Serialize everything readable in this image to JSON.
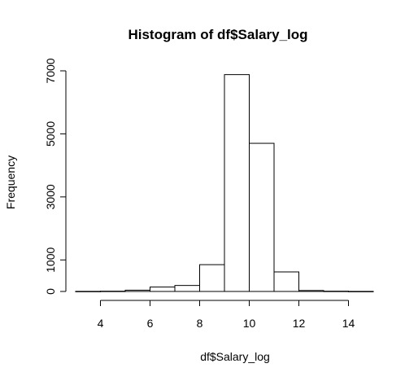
{
  "chart_data": {
    "type": "bar",
    "title": "Histogram of df$Salary_log",
    "xlabel": "df$Salary_log",
    "ylabel": "Frequency",
    "bins": [
      {
        "start": 3,
        "end": 4,
        "count": 3
      },
      {
        "start": 4,
        "end": 5,
        "count": 8
      },
      {
        "start": 5,
        "end": 6,
        "count": 40
      },
      {
        "start": 6,
        "end": 7,
        "count": 140
      },
      {
        "start": 7,
        "end": 8,
        "count": 190
      },
      {
        "start": 8,
        "end": 9,
        "count": 850
      },
      {
        "start": 9,
        "end": 10,
        "count": 6880
      },
      {
        "start": 10,
        "end": 11,
        "count": 4700
      },
      {
        "start": 11,
        "end": 12,
        "count": 620
      },
      {
        "start": 12,
        "end": 13,
        "count": 30
      },
      {
        "start": 13,
        "end": 14,
        "count": 8
      },
      {
        "start": 14,
        "end": 15,
        "count": 2
      }
    ],
    "xlim": [
      3,
      15
    ],
    "ylim": [
      0,
      7000
    ],
    "x_ticks": [
      {
        "value": 4,
        "label": "4"
      },
      {
        "value": 6,
        "label": "6"
      },
      {
        "value": 8,
        "label": "8"
      },
      {
        "value": 10,
        "label": "10"
      },
      {
        "value": 12,
        "label": "12"
      },
      {
        "value": 14,
        "label": "14"
      }
    ],
    "y_ticks": [
      {
        "value": 0,
        "label": "0"
      },
      {
        "value": 1000,
        "label": "1000"
      },
      {
        "value": 3000,
        "label": "3000"
      },
      {
        "value": 5000,
        "label": "5000"
      },
      {
        "value": 7000,
        "label": "7000"
      }
    ],
    "grid": false,
    "bar_fill": "#ffffff",
    "bar_stroke": "#000000"
  }
}
